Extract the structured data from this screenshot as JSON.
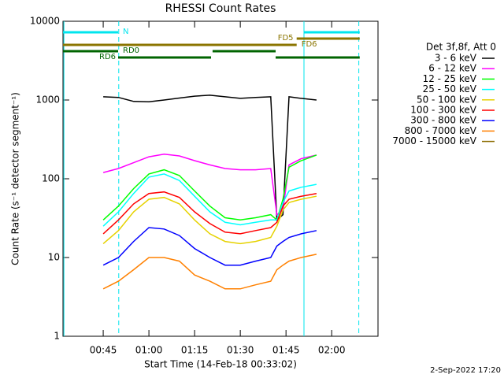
{
  "chart_data": {
    "type": "line",
    "title": "RHESSI Count Rates",
    "x_label": "Start Time (14-Feb-18 00:33:02)",
    "y_label": "Count Rate (s⁻¹ detector segment⁻¹)",
    "legend_title": "Det 3f,8f, Att 0",
    "timestamp": "2-Sep-2022 17:20",
    "log_y": true,
    "xlim": [
      31.8,
      135.2
    ],
    "ylim": [
      1,
      10000
    ],
    "xticks": [
      {
        "value": 45,
        "label": "00:45"
      },
      {
        "value": 60,
        "label": "01:00"
      },
      {
        "value": 75,
        "label": "01:15"
      },
      {
        "value": 90,
        "label": "01:30"
      },
      {
        "value": 105,
        "label": "01:45"
      },
      {
        "value": 120,
        "label": "02:00"
      }
    ],
    "yticks": [
      1,
      10,
      100,
      1000,
      10000
    ],
    "x": [
      45,
      50,
      55,
      60,
      65,
      70,
      75,
      80,
      85,
      90,
      95,
      100,
      102,
      104,
      106,
      110,
      115
    ],
    "series": [
      {
        "name": "3 - 6 keV",
        "color": "#000000",
        "values": [
          1100,
          1080,
          960,
          950,
          1000,
          1060,
          1120,
          1150,
          1100,
          1050,
          1080,
          1100,
          30,
          35,
          1100,
          1050,
          1000
        ]
      },
      {
        "name": "6 - 12 keV",
        "color": "#ff00ff",
        "values": [
          120,
          135,
          160,
          190,
          205,
          195,
          170,
          150,
          135,
          130,
          130,
          135,
          35,
          40,
          150,
          180,
          200
        ]
      },
      {
        "name": "12 - 25 keV",
        "color": "#00ff00",
        "values": [
          30,
          45,
          75,
          115,
          130,
          110,
          70,
          45,
          32,
          30,
          32,
          35,
          30,
          55,
          140,
          170,
          200
        ]
      },
      {
        "name": "25 - 50 keV",
        "color": "#00ffff",
        "values": [
          25,
          38,
          65,
          105,
          115,
          95,
          60,
          38,
          28,
          26,
          28,
          30,
          30,
          50,
          70,
          78,
          85
        ]
      },
      {
        "name": "50 - 100 keV",
        "color": "#e6d200",
        "values": [
          15,
          22,
          38,
          55,
          58,
          48,
          30,
          20,
          16,
          15,
          16,
          18,
          25,
          40,
          50,
          55,
          60
        ]
      },
      {
        "name": "100 - 300 keV",
        "color": "#ff0000",
        "values": [
          20,
          30,
          48,
          65,
          68,
          58,
          38,
          27,
          21,
          20,
          22,
          24,
          28,
          45,
          55,
          60,
          65
        ]
      },
      {
        "name": "300 - 800 keV",
        "color": "#0000ff",
        "values": [
          8,
          10,
          16,
          24,
          23,
          19,
          13,
          10,
          8,
          8,
          9,
          10,
          14,
          16,
          18,
          20,
          22
        ]
      },
      {
        "name": "800 - 7000 keV",
        "color": "#ff8000",
        "values": [
          4,
          5,
          7,
          10,
          10,
          9,
          6,
          5,
          4,
          4,
          4.5,
          5,
          7,
          8,
          9,
          10,
          11
        ]
      },
      {
        "name": "7000 - 15000 keV",
        "color": "#8b6b00",
        "values": [
          null,
          null,
          null,
          null,
          null,
          null,
          null,
          null,
          null,
          null,
          null,
          null,
          null,
          null,
          null,
          null,
          null
        ]
      }
    ],
    "vlines": [
      {
        "x": 32.1,
        "color": "#00e5ee",
        "dashed": false
      },
      {
        "x": 50.1,
        "color": "#00e5ee",
        "dashed": true
      },
      {
        "x": 110.9,
        "color": "#00e5ee",
        "dashed": false
      },
      {
        "x": 128.9,
        "color": "#00e5ee",
        "dashed": true
      }
    ],
    "state_bars": [
      {
        "label": "N",
        "color": "#00e5ee",
        "segments": [
          [
            31.8,
            49.9
          ],
          [
            110.9,
            129.2
          ]
        ]
      },
      {
        "label": "FD5",
        "color": "#8b7500",
        "segments": [
          [
            108.5,
            129.2
          ]
        ]
      },
      {
        "label": "FD6",
        "color": "#8b7500",
        "segments": [
          [
            31.8,
            108.5
          ]
        ]
      },
      {
        "label": "RD0",
        "color": "#006400",
        "segments": [
          [
            31.8,
            49.9
          ],
          [
            80.9,
            101.6
          ]
        ]
      },
      {
        "label": "RD6",
        "color": "#006400",
        "segments": [
          [
            49.9,
            80.4
          ],
          [
            101.6,
            129.2
          ]
        ]
      }
    ]
  }
}
